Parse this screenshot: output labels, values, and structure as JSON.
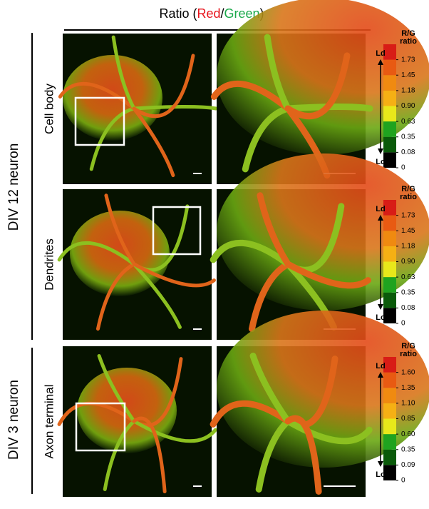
{
  "header": {
    "parts": [
      "Ratio (",
      "Red",
      "/",
      "Green",
      ")"
    ]
  },
  "groups": [
    {
      "label": "DIV 12 neuron"
    },
    {
      "label": "DIV 3 neuron"
    }
  ],
  "rows": [
    {
      "label": "Cell body",
      "colorbar": {
        "title": [
          "R/G",
          "ratio"
        ],
        "high": "Ld",
        "low": "Lo",
        "ticks": [
          "1.73",
          "1.45",
          "1.18",
          "0.90",
          "0.63",
          "0.35",
          "0.08",
          "0"
        ]
      }
    },
    {
      "label": "Dendrites",
      "colorbar": {
        "title": [
          "R/G",
          "ratio"
        ],
        "high": "Ld",
        "low": "Lo",
        "ticks": [
          "1.73",
          "1.45",
          "1.18",
          "0.90",
          "0.63",
          "0.35",
          "0.08",
          "0"
        ]
      }
    },
    {
      "label": "Axon terminal",
      "colorbar": {
        "title": [
          "R/G",
          "ratio"
        ],
        "high": "Ld",
        "low": "Lo",
        "ticks": [
          "1.60",
          "1.35",
          "1.10",
          "0.85",
          "0.60",
          "0.35",
          "0.09",
          "0"
        ]
      }
    }
  ]
}
